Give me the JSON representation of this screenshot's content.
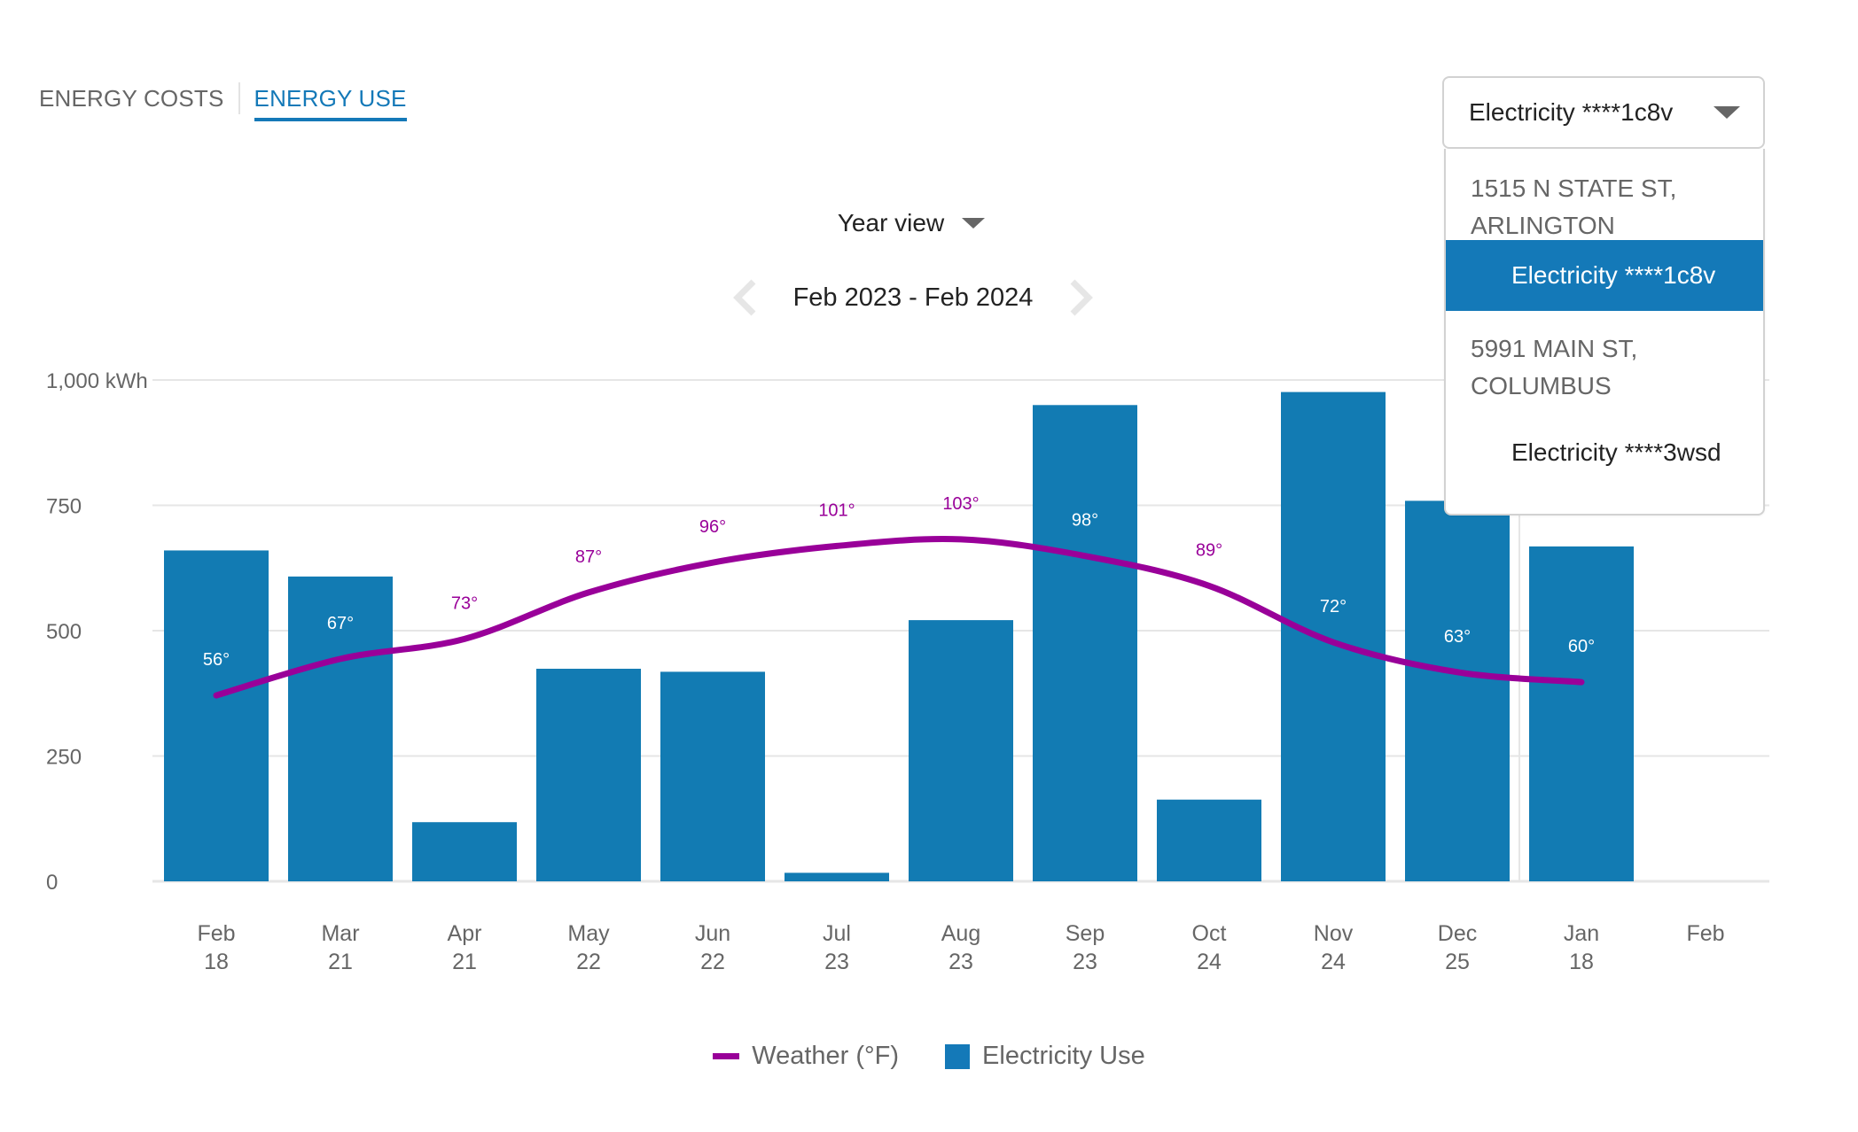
{
  "tabs": [
    {
      "label": "ENERGY COSTS",
      "active": false
    },
    {
      "label": "ENERGY USE",
      "active": true
    }
  ],
  "view_select": {
    "label": "Year view",
    "icon": "caret-down-icon"
  },
  "date_range": {
    "label": "Feb 2023 - Feb 2024",
    "prev_icon": "chevron-left-icon",
    "next_icon": "chevron-right-icon"
  },
  "account_select": {
    "value": "Electricity ****1c8v",
    "icon": "caret-down-icon",
    "menu": [
      {
        "type": "group",
        "label": "1515 N STATE ST, ARLINGTON"
      },
      {
        "type": "option",
        "label": "Electricity ****1c8v",
        "selected": true
      },
      {
        "type": "group",
        "label": "5991 MAIN ST, COLUMBUS"
      },
      {
        "type": "option",
        "label": "Electricity ****3wsd",
        "selected": false
      }
    ]
  },
  "colors": {
    "accent": "#1479b8",
    "bar": "#127bb3",
    "weather_line": "#990099",
    "grid": "#e6e6e6",
    "axis_text": "#666666"
  },
  "chart_data": {
    "type": "bar",
    "title": "",
    "ylabel": "kWh",
    "ylim": [
      0,
      1000
    ],
    "yticks": [
      0,
      250,
      500,
      750,
      1000
    ],
    "ytick_labels": [
      "0",
      "250",
      "500",
      "750",
      "1,000 kWh"
    ],
    "grid": true,
    "categories": [
      {
        "month": "Feb",
        "day": "18"
      },
      {
        "month": "Mar",
        "day": "21"
      },
      {
        "month": "Apr",
        "day": "21"
      },
      {
        "month": "May",
        "day": "22"
      },
      {
        "month": "Jun",
        "day": "22"
      },
      {
        "month": "Jul",
        "day": "23"
      },
      {
        "month": "Aug",
        "day": "23"
      },
      {
        "month": "Sep",
        "day": "23"
      },
      {
        "month": "Oct",
        "day": "24"
      },
      {
        "month": "Nov",
        "day": "24"
      },
      {
        "month": "Dec",
        "day": "25"
      },
      {
        "month": "Jan",
        "day": "18"
      },
      {
        "month": "Feb",
        "day": ""
      }
    ],
    "year_divider_after_index": 10,
    "series": [
      {
        "name": "Electricity Use",
        "type": "bar",
        "unit": "kWh",
        "values": [
          660,
          608,
          118,
          424,
          418,
          17,
          521,
          950,
          163,
          976,
          759,
          668,
          null
        ]
      },
      {
        "name": "Weather (°F)",
        "type": "line",
        "unit": "°F",
        "axis_range": [
          0,
          151
        ],
        "values": [
          56,
          67,
          73,
          87,
          96,
          101,
          103,
          98,
          89,
          72,
          63,
          60,
          null
        ],
        "labels": [
          "56°",
          "67°",
          "73°",
          "87°",
          "96°",
          "101°",
          "103°",
          "98°",
          "89°",
          "72°",
          "63°",
          "60°",
          ""
        ]
      }
    ],
    "legend": {
      "position": "bottom",
      "items": [
        {
          "label": "Weather (°F)",
          "kind": "line"
        },
        {
          "label": "Electricity Use",
          "kind": "box"
        }
      ]
    }
  }
}
